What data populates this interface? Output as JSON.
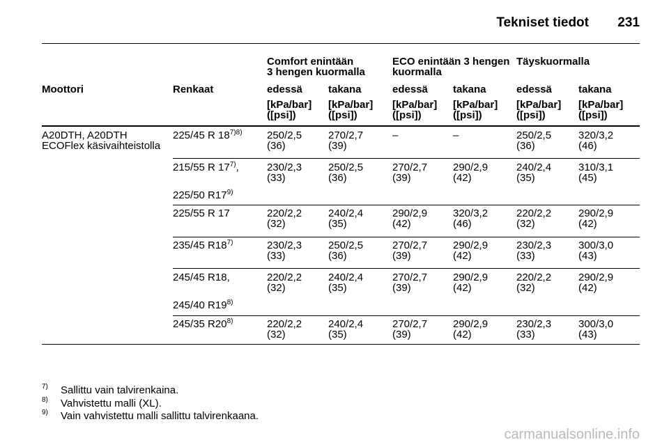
{
  "header": {
    "title": "Tekniset tiedot",
    "page": "231"
  },
  "table": {
    "groups": [
      [
        "Comfort enintään",
        "3 hengen kuormalla"
      ],
      [
        "ECO enintään 3 hengen",
        "kuormalla"
      ],
      [
        "Täyskuormalla"
      ]
    ],
    "columns": [
      "Moottori",
      "Renkaat",
      "edessä",
      "takana",
      "edessä",
      "takana",
      "edessä",
      "takana"
    ],
    "units": [
      [
        "[kPa/bar]",
        "([psi])"
      ],
      [
        "[kPa/bar]",
        "([psi])"
      ],
      [
        "[kPa/bar]",
        "([psi])"
      ],
      [
        "[kPa/bar]",
        "([psi])"
      ],
      [
        "[kPa/bar]",
        "([psi])"
      ],
      [
        "[kPa/bar]",
        "([psi])"
      ]
    ],
    "engine": [
      "A20DTH, A20DTH",
      "ECOFlex käsivaihteistolla"
    ],
    "rows": [
      {
        "tyres": [
          {
            "text": "225/45 R 18",
            "sup": "7)8)"
          }
        ],
        "values": [
          [
            "250/2,5",
            "(36)"
          ],
          [
            "270/2,7",
            "(39)"
          ],
          [
            "–"
          ],
          [
            "–"
          ],
          [
            "250/2,5",
            "(36)"
          ],
          [
            "320/3,2",
            "(46)"
          ]
        ]
      },
      {
        "tyres": [
          {
            "text": "215/55 R 17",
            "sup": "7)",
            "suffix": ","
          },
          {
            "text": "225/50 R17",
            "sup": "9)"
          }
        ],
        "values": [
          [
            "230/2,3",
            "(33)"
          ],
          [
            "250/2,5",
            "(36)"
          ],
          [
            "270/2,7",
            "(39)"
          ],
          [
            "290/2,9",
            "(42)"
          ],
          [
            "240/2,4",
            "(35)"
          ],
          [
            "310/3,1",
            "(45)"
          ]
        ]
      },
      {
        "tyres": [
          {
            "text": "225/55 R 17"
          }
        ],
        "values": [
          [
            "220/2,2",
            "(32)"
          ],
          [
            "240/2,4",
            "(35)"
          ],
          [
            "290/2,9",
            "(42)"
          ],
          [
            "320/3,2",
            "(46)"
          ],
          [
            "220/2,2",
            "(32)"
          ],
          [
            "290/2,9",
            "(42)"
          ]
        ]
      },
      {
        "tyres": [
          {
            "text": "235/45 R18",
            "sup": "7)"
          }
        ],
        "values": [
          [
            "230/2,3",
            "(33)"
          ],
          [
            "250/2,5",
            "(36)"
          ],
          [
            "270/2,7",
            "(39)"
          ],
          [
            "290/2,9",
            "(42)"
          ],
          [
            "230/2,3",
            "(33)"
          ],
          [
            "300/3,0",
            "(43)"
          ]
        ]
      },
      {
        "tyres": [
          {
            "text": "245/45 R18,"
          },
          {
            "text": "245/40 R19",
            "sup": "8)"
          }
        ],
        "values": [
          [
            "220/2,2",
            "(32)"
          ],
          [
            "240/2,4",
            "(35)"
          ],
          [
            "270/2,7",
            "(39)"
          ],
          [
            "290/2,9",
            "(42)"
          ],
          [
            "220/2,2",
            "(32)"
          ],
          [
            "290/2,9",
            "(42)"
          ]
        ]
      },
      {
        "tyres": [
          {
            "text": "245/35 R20",
            "sup": "8)"
          }
        ],
        "values": [
          [
            "220/2,2",
            "(32)"
          ],
          [
            "240/2,4",
            "(35)"
          ],
          [
            "270/2,7",
            "(39)"
          ],
          [
            "290/2,9",
            "(42)"
          ],
          [
            "230/2,3",
            "(33)"
          ],
          [
            "300/3,0",
            "(43)"
          ]
        ]
      }
    ]
  },
  "footnotes": [
    {
      "mark": "7)",
      "text": "Sallittu vain talvirenkaina."
    },
    {
      "mark": "8)",
      "text": "Vahvistettu malli (XL)."
    },
    {
      "mark": "9)",
      "text": "Vain vahvistettu malli sallittu talvirenkaana."
    }
  ],
  "watermark": "carmanualsonline.info"
}
